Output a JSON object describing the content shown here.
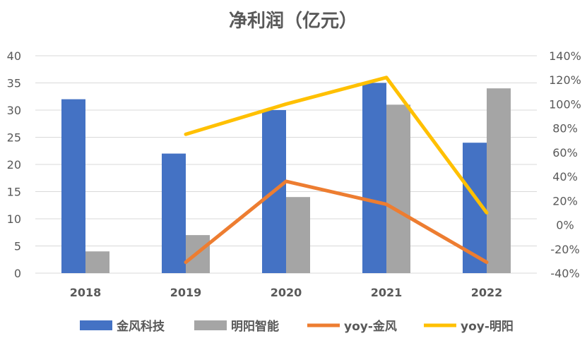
{
  "chart_data": {
    "type": "bar",
    "title": "净利润（亿元）",
    "categories": [
      "2018",
      "2019",
      "2020",
      "2021",
      "2022"
    ],
    "series": [
      {
        "name": "金风科技",
        "type": "bar",
        "axis": "left",
        "color": "#4472C4",
        "values": [
          32,
          22,
          30,
          35,
          24
        ]
      },
      {
        "name": "明阳智能",
        "type": "bar",
        "axis": "left",
        "color": "#A5A5A5",
        "values": [
          4,
          7,
          14,
          31,
          34
        ]
      },
      {
        "name": "yoy-金风",
        "type": "line",
        "axis": "right",
        "color": "#ED7D31",
        "values": [
          null,
          -31,
          36,
          17,
          -31
        ]
      },
      {
        "name": "yoy-明阳",
        "type": "line",
        "axis": "right",
        "color": "#FFC000",
        "values": [
          null,
          75,
          100,
          122,
          10
        ]
      }
    ],
    "ylim": [
      0,
      40
    ],
    "yticks": [
      "0",
      "5",
      "10",
      "15",
      "20",
      "25",
      "30",
      "35",
      "40"
    ],
    "y2lim": [
      -40,
      140
    ],
    "y2ticks": [
      "-40%",
      "-20%",
      "0%",
      "20%",
      "40%",
      "60%",
      "80%",
      "100%",
      "120%",
      "140%"
    ],
    "grid": true,
    "legend": "bottom"
  }
}
